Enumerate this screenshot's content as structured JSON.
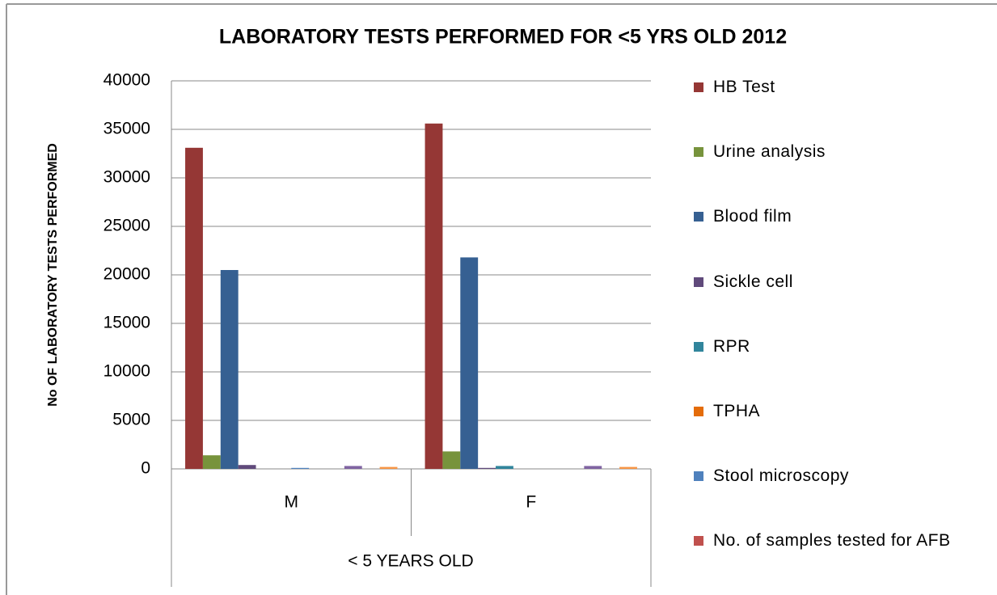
{
  "chart_data": {
    "type": "bar",
    "title": "LABORATORY TESTS PERFORMED FOR <5 YRS OLD 2012",
    "y_label": "No OF LABORATORY TESTS PERFORMED",
    "group_label": "< 5 YEARS OLD",
    "categories": [
      "M",
      "F"
    ],
    "series": [
      {
        "name": "HB Test",
        "color": "#953735",
        "values": [
          33100,
          35600
        ]
      },
      {
        "name": "Urine analysis",
        "color": "#77933c",
        "values": [
          1400,
          1800
        ]
      },
      {
        "name": "Blood film",
        "color": "#366092",
        "values": [
          20500,
          21800
        ]
      },
      {
        "name": "Sickle cell",
        "color": "#604a7b",
        "values": [
          400,
          100
        ]
      },
      {
        "name": "RPR",
        "color": "#31859c",
        "values": [
          0,
          300
        ]
      },
      {
        "name": "TPHA",
        "color": "#e46c0a",
        "values": [
          0,
          0
        ]
      },
      {
        "name": "Stool microscopy",
        "color": "#4f81bd",
        "values": [
          100,
          0
        ]
      },
      {
        "name": "No. of samples tested for AFB",
        "color": "#c0504d",
        "values": [
          0,
          0
        ]
      },
      {
        "name": null,
        "color": "#9bbb59",
        "values": [
          0,
          0
        ]
      },
      {
        "name": null,
        "color": "#8064a2",
        "values": [
          300,
          300
        ]
      },
      {
        "name": null,
        "color": "#4bacc6",
        "values": [
          0,
          0
        ]
      },
      {
        "name": null,
        "color": "#f79646",
        "values": [
          200,
          200
        ]
      }
    ],
    "ylim": [
      0,
      40000
    ],
    "yticks": [
      0,
      5000,
      10000,
      15000,
      20000,
      25000,
      30000,
      35000,
      40000
    ],
    "grid": true,
    "legend": "right"
  }
}
